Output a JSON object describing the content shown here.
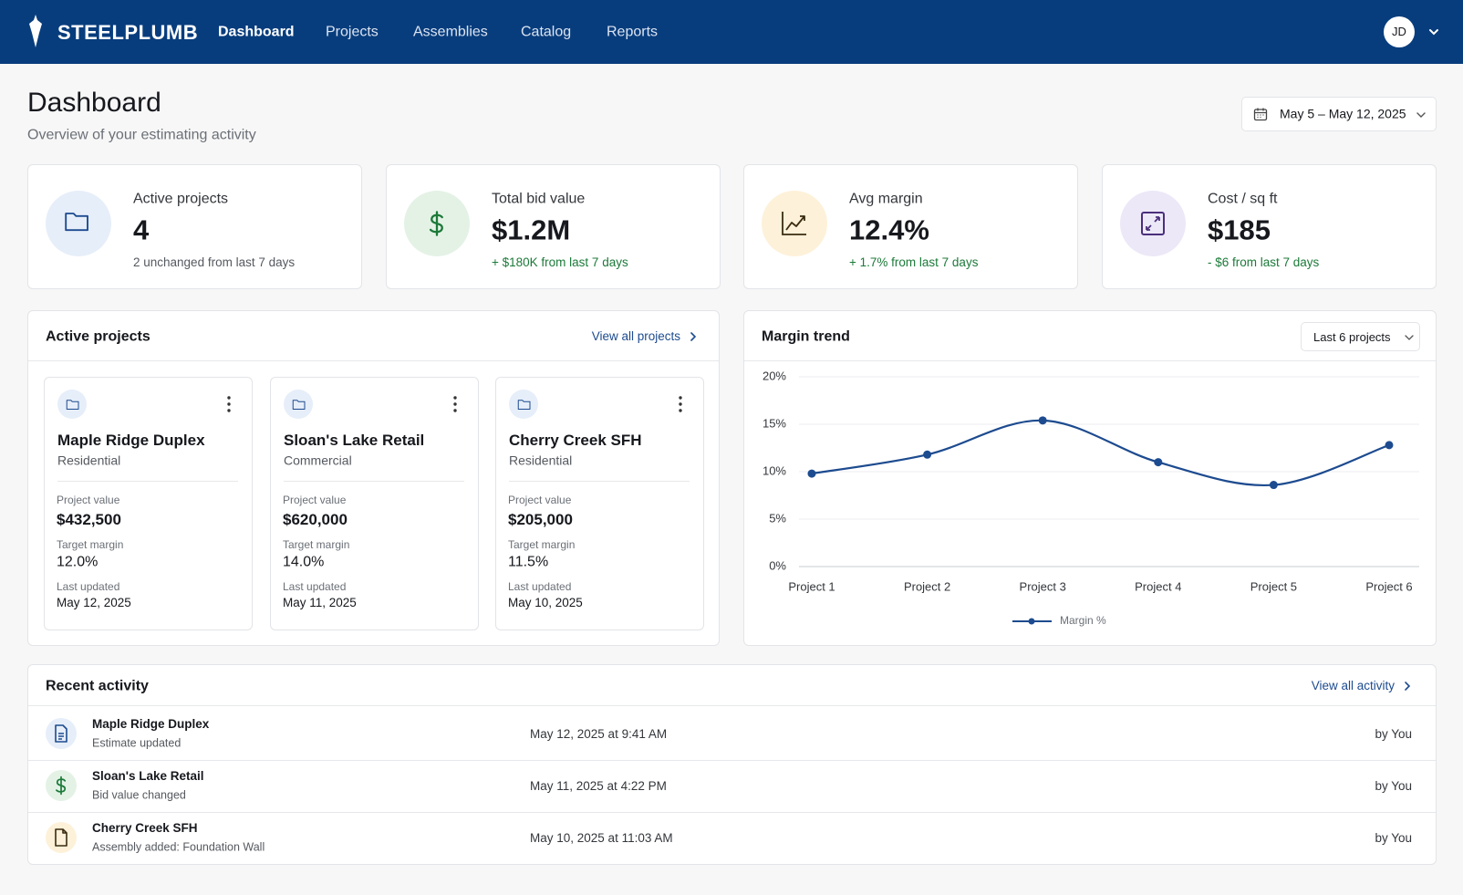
{
  "header": {
    "logo": "STEELPLUMB",
    "nav": [
      "Dashboard",
      "Projects",
      "Assemblies",
      "Catalog",
      "Reports"
    ],
    "avatar": "JD"
  },
  "page": {
    "title": "Dashboard",
    "subtitle": "Overview of your estimating activity",
    "date_range": "May 5 – May 12, 2025"
  },
  "kpis": [
    {
      "label": "Active projects",
      "value": "4",
      "change": "2 unchanged from last 7 days"
    },
    {
      "label": "Total bid value",
      "value": "$1.2M",
      "change": "+ $180K from last 7 days"
    },
    {
      "label": "Avg margin",
      "value": "12.4%",
      "change": "+ 1.7% from last 7 days"
    },
    {
      "label": "Cost / sq ft",
      "value": "$185",
      "change": "- $6 from last 7 days"
    }
  ],
  "active_projects": {
    "title": "Active projects",
    "link": "View all projects",
    "cards": [
      {
        "name": "Maple Ridge Duplex",
        "type": "Residential",
        "value_label": "Project value",
        "value": "$432,500",
        "margin_label": "Target margin",
        "margin": "12.0%",
        "updated_label": "Last updated",
        "updated": "May 12, 2025"
      },
      {
        "name": "Sloan's Lake Retail",
        "type": "Commercial",
        "value_label": "Project value",
        "value": "$620,000",
        "margin_label": "Target margin",
        "margin": "14.0%",
        "updated_label": "Last updated",
        "updated": "May 11, 2025"
      },
      {
        "name": "Cherry Creek SFH",
        "type": "Residential",
        "value_label": "Project value",
        "value": "$205,000",
        "margin_label": "Target margin",
        "margin": "11.5%",
        "updated_label": "Last updated",
        "updated": "May 10, 2025"
      }
    ]
  },
  "margin_panel": {
    "title": "Margin trend",
    "filter": "Last 6 projects"
  },
  "chart_data": {
    "type": "line",
    "categories": [
      "Project 1",
      "Project 2",
      "Project 3",
      "Project 4",
      "Project 5",
      "Project 6"
    ],
    "series": [
      {
        "name": "Margin %",
        "color": "#1d4b8f",
        "values": [
          9.8,
          11.8,
          15.4,
          11.0,
          8.6,
          12.8
        ]
      }
    ],
    "ylim": [
      0,
      20
    ],
    "yticks": [
      {
        "value": 0,
        "label": "0%"
      },
      {
        "value": 5,
        "label": "5%"
      },
      {
        "value": 10,
        "label": "10%"
      },
      {
        "value": 15,
        "label": "15%"
      },
      {
        "value": 20,
        "label": "20%"
      }
    ],
    "grid": true,
    "legend": "bottom"
  },
  "recent_activity": {
    "title": "Recent activity",
    "link": "View all activity",
    "items": [
      {
        "name": "Maple Ridge Duplex",
        "action": "Estimate updated",
        "time": "May 12, 2025 at 9:41 AM",
        "by": "by You"
      },
      {
        "name": "Sloan's Lake Retail",
        "action": "Bid value changed",
        "time": "May 11, 2025 at 4:22 PM",
        "by": "by You"
      },
      {
        "name": "Cherry Creek SFH",
        "action": "Assembly added: Foundation Wall",
        "time": "May 10, 2025 at 11:03 AM",
        "by": "by You"
      }
    ]
  }
}
